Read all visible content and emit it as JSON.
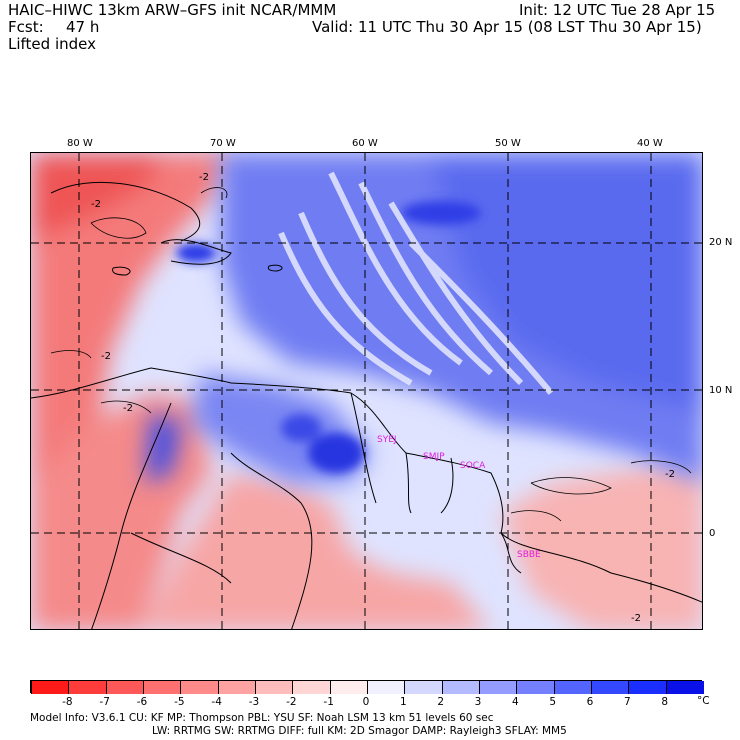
{
  "header": {
    "title": "HAIC–HIWC 13km ARW–GFS init    NCAR/MMM",
    "init": "Init: 12 UTC Tue 28 Apr 15",
    "fcst_label": "Fcst:",
    "fcst_value": "47 h",
    "valid": "Valid: 11 UTC Thu 30 Apr 15 (08 LST Thu 30 Apr 15)",
    "field": "Lifted index"
  },
  "map": {
    "lon_labels": [
      "80 W",
      "70 W",
      "60 W",
      "50 W",
      "40 W"
    ],
    "lat_labels": [
      "20 N",
      "10 N",
      "0"
    ],
    "stations": [
      "SYEJ",
      "SMJP",
      "SOCA",
      "SBBE"
    ],
    "station_color": "#e020e0",
    "contour_labels": [
      "-2",
      "-2",
      "-2",
      "-2",
      "-2",
      "-2"
    ],
    "colors": {
      "negative": "#f06a6a",
      "positive": "#4a58f0",
      "land_outline": "#000000"
    }
  },
  "colorbar": {
    "labels": [
      "-8",
      "-7",
      "-6",
      "-5",
      "-4",
      "-3",
      "-2",
      "-1",
      "0",
      "1",
      "2",
      "3",
      "4",
      "5",
      "6",
      "7",
      "8"
    ],
    "unit": "°C",
    "colors": [
      "#ff1a1a",
      "#ff3c3c",
      "#ff5858",
      "#ff7070",
      "#ff8a8a",
      "#ffa2a2",
      "#ffbcbc",
      "#ffd6d6",
      "#ffecec",
      "#f0f0ff",
      "#d4d8ff",
      "#b4baff",
      "#949cff",
      "#7480ff",
      "#5464ff",
      "#3448ff",
      "#1a2eff",
      "#0a10e8"
    ]
  },
  "footer": {
    "line1": "Model Info: V3.6.1     CU: KF        MP: Thompson      PBL: YSU        SF: Noah LSM      13 km    51 levels   60 sec",
    "line2": "LW: RRTMG     SW: RRTMG   DIFF: full    KM: 2D Smagor  DAMP: Rayleigh3   SFLAY: MM5"
  }
}
